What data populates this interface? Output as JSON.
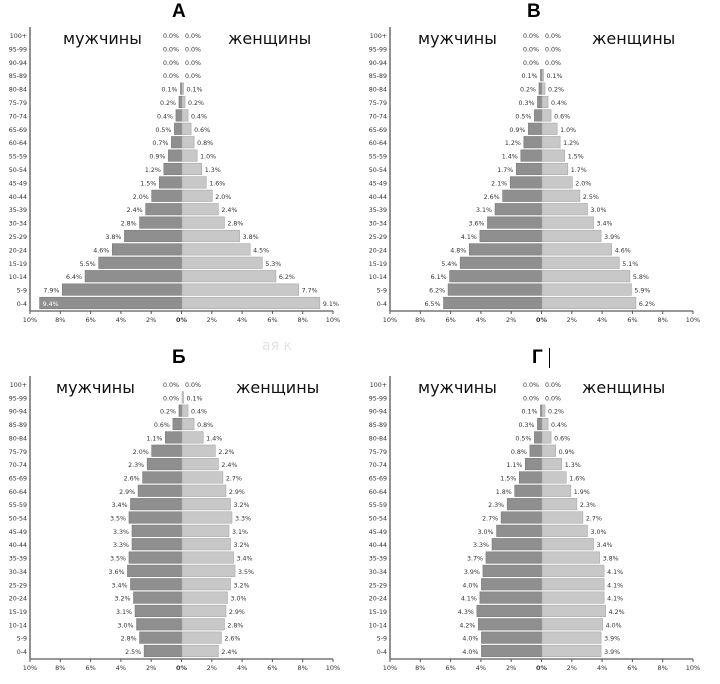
{
  "colors": {
    "male": "#8f8f8f",
    "female": "#c8c8c8",
    "axis": "#555555",
    "text": "#333333"
  },
  "watermark": "ая к",
  "chart_data": [
    {
      "type": "bar",
      "id": "A",
      "title": "А",
      "subtype": "population-pyramid",
      "left_label": "мужчины",
      "right_label": "женщины",
      "categories": [
        "100+",
        "95-99",
        "90-94",
        "85-89",
        "80-84",
        "75-79",
        "70-74",
        "65-69",
        "60-64",
        "55-59",
        "50-54",
        "45-49",
        "40-44",
        "35-39",
        "30-34",
        "25-29",
        "20-24",
        "15-19",
        "10-14",
        "5-9",
        "0-4"
      ],
      "series": [
        {
          "name": "мужчины",
          "values": [
            0.0,
            0.0,
            0.0,
            0.0,
            0.1,
            0.2,
            0.4,
            0.5,
            0.7,
            0.9,
            1.2,
            1.5,
            2.0,
            2.4,
            2.8,
            3.8,
            4.6,
            5.5,
            6.4,
            7.9,
            9.4
          ]
        },
        {
          "name": "женщины",
          "values": [
            0.0,
            0.0,
            0.0,
            0.0,
            0.1,
            0.2,
            0.4,
            0.6,
            0.8,
            1.0,
            1.3,
            1.6,
            2.0,
            2.4,
            2.8,
            3.8,
            4.5,
            5.3,
            6.2,
            7.7,
            9.1
          ]
        }
      ],
      "xticks": [
        "10%",
        "8%",
        "6%",
        "4%",
        "2%",
        "0%",
        "2%",
        "4%",
        "6%",
        "8%",
        "10%"
      ],
      "xlim": [
        -10,
        10
      ]
    },
    {
      "type": "bar",
      "id": "B",
      "title": "В",
      "subtype": "population-pyramid",
      "left_label": "мужчины",
      "right_label": "женщины",
      "categories": [
        "100+",
        "95-99",
        "90-94",
        "85-89",
        "80-84",
        "75-79",
        "70-74",
        "65-69",
        "60-64",
        "55-59",
        "50-54",
        "45-49",
        "40-44",
        "35-39",
        "30-34",
        "25-29",
        "20-24",
        "15-19",
        "10-14",
        "5-9",
        "0-4"
      ],
      "series": [
        {
          "name": "мужчины",
          "values": [
            0.0,
            0.0,
            0.0,
            0.1,
            0.2,
            0.3,
            0.5,
            0.9,
            1.2,
            1.4,
            1.7,
            2.1,
            2.6,
            3.1,
            3.6,
            4.1,
            4.8,
            5.4,
            6.1,
            6.2,
            6.5
          ]
        },
        {
          "name": "женщины",
          "values": [
            0.0,
            0.0,
            0.0,
            0.1,
            0.2,
            0.4,
            0.6,
            1.0,
            1.2,
            1.5,
            1.7,
            2.0,
            2.5,
            3.0,
            3.4,
            3.9,
            4.6,
            5.1,
            5.8,
            5.9,
            6.2
          ]
        }
      ],
      "xticks": [
        "10%",
        "8%",
        "6%",
        "4%",
        "2%",
        "0%",
        "2%",
        "4%",
        "6%",
        "8%",
        "10%"
      ],
      "xlim": [
        -10,
        10
      ]
    },
    {
      "type": "bar",
      "id": "Б",
      "title": "Б",
      "subtype": "population-pyramid",
      "left_label": "мужчины",
      "right_label": "женщины",
      "categories": [
        "100+",
        "95-99",
        "90-94",
        "85-89",
        "80-84",
        "75-79",
        "70-74",
        "65-69",
        "60-64",
        "55-59",
        "50-54",
        "45-49",
        "40-44",
        "35-39",
        "30-34",
        "25-29",
        "20-24",
        "15-19",
        "10-14",
        "5-9",
        "0-4"
      ],
      "series": [
        {
          "name": "мужчины",
          "values": [
            0.0,
            0.0,
            0.2,
            0.6,
            1.1,
            2.0,
            2.3,
            2.6,
            2.9,
            3.4,
            3.5,
            3.3,
            3.3,
            3.5,
            3.6,
            3.4,
            3.2,
            3.1,
            3.0,
            2.8,
            2.5
          ]
        },
        {
          "name": "женщины",
          "values": [
            0.0,
            0.1,
            0.4,
            0.8,
            1.4,
            2.2,
            2.4,
            2.7,
            2.9,
            3.2,
            3.3,
            3.1,
            3.2,
            3.4,
            3.5,
            3.2,
            3.0,
            2.9,
            2.8,
            2.6,
            2.4
          ]
        }
      ],
      "xticks": [
        "10%",
        "8%",
        "6%",
        "4%",
        "2%",
        "0%",
        "2%",
        "4%",
        "6%",
        "8%",
        "10%"
      ],
      "xlim": [
        -10,
        10
      ]
    },
    {
      "type": "bar",
      "id": "Г",
      "title": "Г",
      "subtype": "population-pyramid",
      "left_label": "мужчины",
      "right_label": "женщины",
      "categories": [
        "100+",
        "95-99",
        "90-94",
        "85-89",
        "80-84",
        "75-79",
        "70-74",
        "65-69",
        "60-64",
        "55-59",
        "50-54",
        "45-49",
        "40-44",
        "35-39",
        "30-34",
        "25-29",
        "20-24",
        "15-19",
        "10-14",
        "5-9",
        "0-4"
      ],
      "series": [
        {
          "name": "мужчины",
          "values": [
            0.0,
            0.0,
            0.1,
            0.3,
            0.5,
            0.8,
            1.1,
            1.5,
            1.8,
            2.3,
            2.7,
            3.0,
            3.3,
            3.7,
            3.9,
            4.0,
            4.1,
            4.3,
            4.2,
            4.0,
            4.0
          ]
        },
        {
          "name": "женщины",
          "values": [
            0.0,
            0.0,
            0.2,
            0.4,
            0.6,
            0.9,
            1.3,
            1.6,
            1.9,
            2.3,
            2.7,
            3.0,
            3.4,
            3.8,
            4.1,
            4.1,
            4.1,
            4.2,
            4.0,
            3.9,
            3.9
          ]
        }
      ],
      "xticks": [
        "10%",
        "8%",
        "6%",
        "4%",
        "2%",
        "0%",
        "2%",
        "4%",
        "6%",
        "8%",
        "10%"
      ],
      "xlim": [
        -10,
        10
      ]
    }
  ]
}
